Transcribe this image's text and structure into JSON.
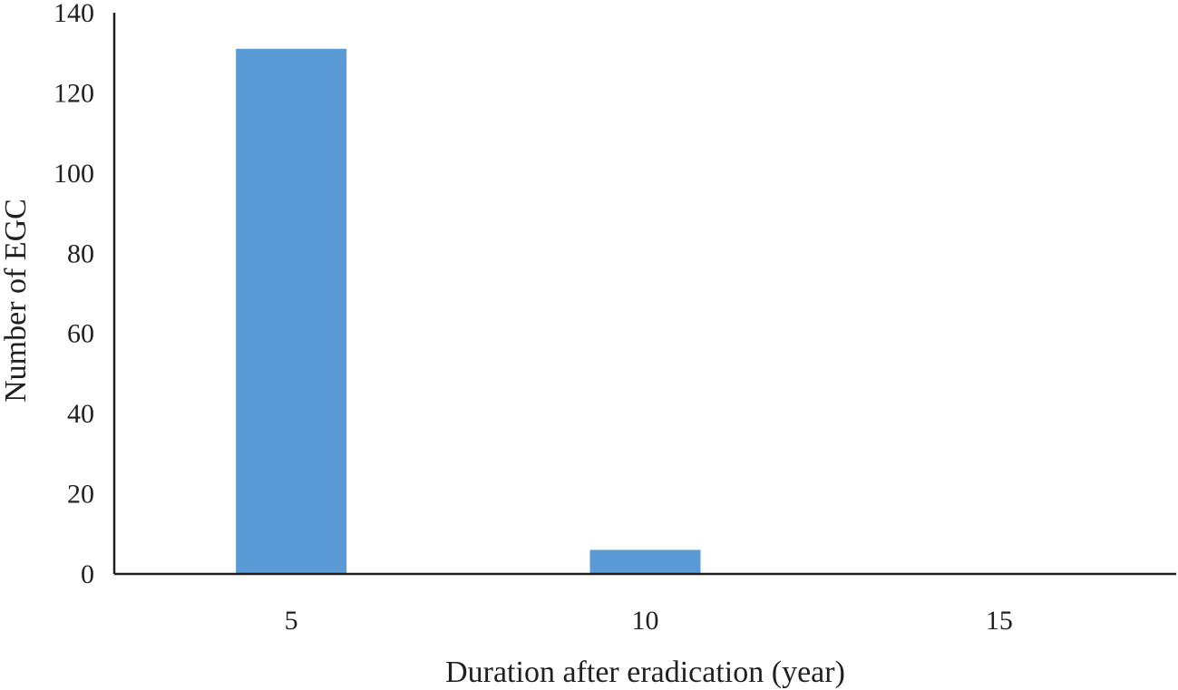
{
  "chart_data": {
    "type": "bar",
    "categories": [
      "5",
      "10",
      "15"
    ],
    "values": [
      131,
      6,
      0
    ],
    "title": "",
    "xlabel": "Duration after eradication (year)",
    "ylabel": "Number of EGC",
    "ylim": [
      0,
      140
    ],
    "yticks": [
      "0",
      "20",
      "40",
      "60",
      "80",
      "100",
      "120",
      "140"
    ],
    "grid": false,
    "legend": "none",
    "bar_color": "#5b9bd5",
    "axis_color": "#231f20"
  }
}
